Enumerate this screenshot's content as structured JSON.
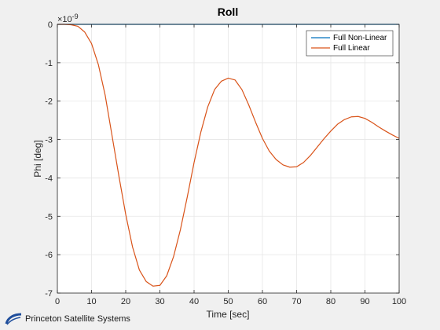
{
  "chart_data": {
    "type": "line",
    "title": "Roll",
    "xlabel": "Time [sec]",
    "ylabel": "Phi [deg]",
    "y_exponent_label": "×10",
    "y_exponent_power": "-9",
    "xlim": [
      0,
      100
    ],
    "ylim": [
      -7,
      0
    ],
    "xticks": [
      0,
      10,
      20,
      30,
      40,
      50,
      60,
      70,
      80,
      90,
      100
    ],
    "yticks": [
      0,
      -1,
      -2,
      -3,
      -4,
      -5,
      -6,
      -7
    ],
    "grid": true,
    "legend_location": "top-right",
    "series": [
      {
        "name": "Full Non-Linear",
        "color": "#0072bd",
        "x": [
          0,
          100
        ],
        "y": [
          0,
          0
        ]
      },
      {
        "name": "Full Linear",
        "color": "#d95319",
        "x": [
          0,
          2,
          4,
          6,
          8,
          10,
          12,
          14,
          16,
          18,
          20,
          22,
          24,
          26,
          28,
          30,
          32,
          34,
          36,
          38,
          40,
          42,
          44,
          46,
          48,
          50,
          52,
          54,
          56,
          58,
          60,
          62,
          64,
          66,
          68,
          70,
          72,
          74,
          76,
          78,
          80,
          82,
          84,
          86,
          88,
          90,
          92,
          94,
          96,
          98,
          100
        ],
        "y": [
          0,
          0,
          -0.01,
          -0.05,
          -0.2,
          -0.5,
          -1.05,
          -1.85,
          -2.9,
          -3.95,
          -4.95,
          -5.8,
          -6.4,
          -6.7,
          -6.82,
          -6.8,
          -6.55,
          -6.05,
          -5.35,
          -4.5,
          -3.6,
          -2.8,
          -2.15,
          -1.7,
          -1.48,
          -1.4,
          -1.45,
          -1.7,
          -2.1,
          -2.55,
          -2.97,
          -3.3,
          -3.52,
          -3.66,
          -3.72,
          -3.71,
          -3.6,
          -3.42,
          -3.2,
          -2.98,
          -2.78,
          -2.6,
          -2.48,
          -2.41,
          -2.4,
          -2.45,
          -2.55,
          -2.67,
          -2.78,
          -2.88,
          -2.97
        ]
      }
    ]
  },
  "footer": {
    "logo_icon": "princeton-satellite-systems-logo-icon",
    "text": "Princeton Satellite Systems"
  }
}
